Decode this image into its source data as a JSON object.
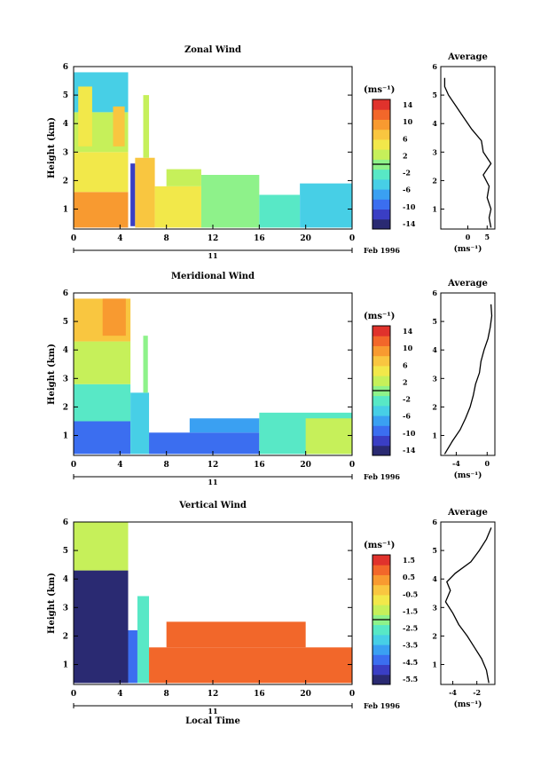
{
  "panels": [
    {
      "key": "zonal",
      "title": "Zonal Wind",
      "avg_title": "Average",
      "ylabel": "Height (km)",
      "y_ticks": [
        "1",
        "2",
        "3",
        "4",
        "5",
        "6"
      ],
      "x_ticks": [
        "0",
        "4",
        "8",
        "12",
        "16",
        "20",
        "0"
      ],
      "day_label": "11",
      "date_label": "Feb 1996",
      "colorbar_unit": "(ms⁻¹)",
      "colorbar_ticks": [
        "14",
        "10",
        "6",
        "2",
        "-2",
        "-6",
        "-10",
        "-14"
      ],
      "avg_x_ticks": [
        "0",
        "5"
      ],
      "avg_xlabel": "(ms⁻¹)"
    },
    {
      "key": "meridional",
      "title": "Meridional Wind",
      "avg_title": "Average",
      "ylabel": "Height (km)",
      "y_ticks": [
        "1",
        "2",
        "3",
        "4",
        "5",
        "6"
      ],
      "x_ticks": [
        "0",
        "4",
        "8",
        "12",
        "16",
        "20",
        "0"
      ],
      "day_label": "11",
      "date_label": "Feb 1996",
      "colorbar_unit": "(ms⁻¹)",
      "colorbar_ticks": [
        "14",
        "10",
        "6",
        "2",
        "-2",
        "-6",
        "-10",
        "-14"
      ],
      "avg_x_ticks": [
        "-4",
        "0"
      ],
      "avg_xlabel": "(ms⁻¹)"
    },
    {
      "key": "vertical",
      "title": "Vertical Wind",
      "avg_title": "Average",
      "ylabel": "Height (km)",
      "y_ticks": [
        "1",
        "2",
        "3",
        "4",
        "5",
        "6"
      ],
      "x_ticks": [
        "0",
        "4",
        "8",
        "12",
        "16",
        "20",
        "0"
      ],
      "day_label": "11",
      "date_label": "Feb 1996",
      "colorbar_unit": "(ms⁻¹)",
      "colorbar_ticks": [
        "1.5",
        "0.5",
        "-0.5",
        "-1.5",
        "-2.5",
        "-3.5",
        "-4.5",
        "-5.5"
      ],
      "avg_x_ticks": [
        "-4",
        "-2"
      ],
      "avg_xlabel": "(ms⁻¹)",
      "xlabel": "Local Time"
    }
  ],
  "chart_data": [
    {
      "type": "heatmap",
      "title": "Zonal Wind",
      "ylabel": "Height (km)",
      "x_unit": "local time (h), 11 Feb 1996",
      "xlim": [
        0,
        24
      ],
      "ylim": [
        0.3,
        6
      ],
      "color_scale": {
        "min": -16,
        "max": 16,
        "unit": "ms⁻¹"
      },
      "regions": [
        {
          "t0": 0,
          "t1": 4.7,
          "h0": 0.35,
          "h1": 1.6,
          "v": 10
        },
        {
          "t0": 0,
          "t1": 4.7,
          "h0": 1.6,
          "h1": 3.0,
          "v": 5
        },
        {
          "t0": 0,
          "t1": 4.7,
          "h0": 3.0,
          "h1": 4.4,
          "v": 3
        },
        {
          "t0": 0,
          "t1": 4.7,
          "h0": 4.4,
          "h1": 5.8,
          "v": -4
        },
        {
          "t0": 0.4,
          "t1": 1.6,
          "h0": 3.2,
          "h1": 5.3,
          "v": 6
        },
        {
          "t0": 3.4,
          "t1": 4.4,
          "h0": 3.2,
          "h1": 4.6,
          "v": 7
        },
        {
          "t0": 4.9,
          "t1": 5.3,
          "h0": 0.4,
          "h1": 2.6,
          "v": -13
        },
        {
          "t0": 5.3,
          "t1": 7.0,
          "h0": 0.35,
          "h1": 2.8,
          "v": 7
        },
        {
          "t0": 6.0,
          "t1": 6.5,
          "h0": 2.8,
          "h1": 5.0,
          "v": 2
        },
        {
          "t0": 7.0,
          "t1": 11.0,
          "h0": 0.35,
          "h1": 1.8,
          "v": 5
        },
        {
          "t0": 8.0,
          "t1": 11.0,
          "h0": 1.8,
          "h1": 2.4,
          "v": 2
        },
        {
          "t0": 11.0,
          "t1": 16.0,
          "h0": 0.35,
          "h1": 2.2,
          "v": 1
        },
        {
          "t0": 16.0,
          "t1": 19.5,
          "h0": 0.35,
          "h1": 1.5,
          "v": -2
        },
        {
          "t0": 19.5,
          "t1": 24.0,
          "h0": 0.35,
          "h1": 1.9,
          "v": -5
        },
        {
          "t0": 13.0,
          "t1": 14.8,
          "h0": 1.6,
          "h1": 2.2,
          "v": 0
        }
      ],
      "average_profile": {
        "xlim": [
          -7,
          7
        ],
        "height": [
          0.35,
          0.7,
          1.0,
          1.4,
          1.8,
          2.2,
          2.6,
          3.0,
          3.4,
          3.8,
          4.2,
          4.6,
          5.0,
          5.3,
          5.6
        ],
        "value": [
          6,
          5.5,
          6,
          5,
          5.5,
          4,
          6,
          4,
          3.5,
          1,
          -1,
          -3,
          -5,
          -6,
          -6
        ]
      }
    },
    {
      "type": "heatmap",
      "title": "Meridional Wind",
      "ylabel": "Height (km)",
      "x_unit": "local time (h), 11 Feb 1996",
      "xlim": [
        0,
        24
      ],
      "ylim": [
        0.3,
        6
      ],
      "color_scale": {
        "min": -16,
        "max": 16,
        "unit": "ms⁻¹"
      },
      "regions": [
        {
          "t0": 0,
          "t1": 4.9,
          "h0": 0.35,
          "h1": 1.5,
          "v": -9
        },
        {
          "t0": 0,
          "t1": 4.9,
          "h0": 1.5,
          "h1": 2.8,
          "v": -3
        },
        {
          "t0": 0,
          "t1": 4.9,
          "h0": 2.8,
          "h1": 4.3,
          "v": 3
        },
        {
          "t0": 0,
          "t1": 4.9,
          "h0": 4.3,
          "h1": 5.8,
          "v": 7
        },
        {
          "t0": 2.5,
          "t1": 4.5,
          "h0": 4.5,
          "h1": 5.8,
          "v": 11
        },
        {
          "t0": 4.9,
          "t1": 6.5,
          "h0": 0.35,
          "h1": 2.5,
          "v": -6
        },
        {
          "t0": 6.0,
          "t1": 6.4,
          "h0": 2.5,
          "h1": 4.5,
          "v": 1
        },
        {
          "t0": 6.5,
          "t1": 16.0,
          "h0": 0.35,
          "h1": 1.1,
          "v": -11
        },
        {
          "t0": 10.0,
          "t1": 16.0,
          "h0": 1.1,
          "h1": 1.6,
          "v": -7
        },
        {
          "t0": 16.0,
          "t1": 24.0,
          "h0": 0.35,
          "h1": 1.8,
          "v": -2
        },
        {
          "t0": 20.0,
          "t1": 24.0,
          "h0": 0.35,
          "h1": 1.6,
          "v": 2
        }
      ],
      "average_profile": {
        "xlim": [
          -6,
          1
        ],
        "height": [
          0.35,
          0.8,
          1.2,
          1.6,
          2.0,
          2.4,
          2.8,
          3.2,
          3.6,
          4.0,
          4.4,
          4.8,
          5.2,
          5.6
        ],
        "value": [
          -5.5,
          -4.5,
          -3.5,
          -2.8,
          -2.2,
          -1.8,
          -1.5,
          -1.0,
          -0.8,
          -0.4,
          0.1,
          0.4,
          0.6,
          0.5
        ]
      }
    },
    {
      "type": "heatmap",
      "title": "Vertical Wind",
      "ylabel": "Height (km)",
      "xlabel": "Local Time",
      "x_unit": "local time (h), 11 Feb 1996",
      "xlim": [
        0,
        24
      ],
      "ylim": [
        0.3,
        6
      ],
      "color_scale": {
        "min": -6,
        "max": 2,
        "unit": "ms⁻¹"
      },
      "regions": [
        {
          "t0": 0,
          "t1": 4.7,
          "h0": 0.35,
          "h1": 4.3,
          "v": -5.8
        },
        {
          "t0": 0,
          "t1": 4.7,
          "h0": 4.3,
          "h1": 6.0,
          "v": -1.2
        },
        {
          "t0": 4.7,
          "t1": 5.5,
          "h0": 0.35,
          "h1": 2.2,
          "v": -4.5
        },
        {
          "t0": 5.5,
          "t1": 6.5,
          "h0": 0.35,
          "h1": 3.4,
          "v": -2.5
        },
        {
          "t0": 6.5,
          "t1": 24.0,
          "h0": 0.35,
          "h1": 1.6,
          "v": 1.0
        },
        {
          "t0": 8.0,
          "t1": 20.0,
          "h0": 1.6,
          "h1": 2.5,
          "v": 0.8
        }
      ],
      "average_profile": {
        "xlim": [
          -5,
          -0.5
        ],
        "height": [
          0.35,
          0.8,
          1.2,
          1.6,
          2.0,
          2.4,
          2.8,
          3.2,
          3.6,
          3.9,
          4.2,
          4.6,
          5.0,
          5.4,
          5.8
        ],
        "value": [
          -1.0,
          -1.2,
          -1.6,
          -2.2,
          -2.8,
          -3.5,
          -4.0,
          -4.6,
          -4.2,
          -4.5,
          -3.8,
          -2.5,
          -1.8,
          -1.2,
          -0.8
        ]
      }
    }
  ]
}
